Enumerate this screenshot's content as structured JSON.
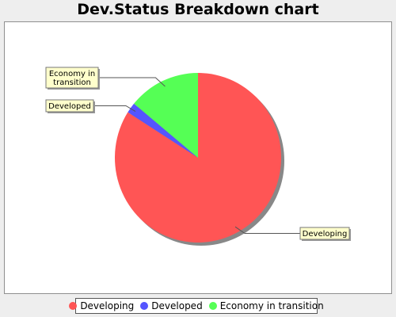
{
  "chart_data": {
    "type": "pie",
    "title": "Dev.Status Breakdown chart",
    "slices": [
      {
        "label": "Developing",
        "value": 84,
        "color": "#ff5555"
      },
      {
        "label": "Developed",
        "value": 2,
        "color": "#5555ff"
      },
      {
        "label": "Economy in transition",
        "value": 14,
        "color": "#55ff55"
      }
    ],
    "legend": {
      "placement": "bottom"
    },
    "callout_labels": [
      {
        "label": "Economy in transition",
        "lines": [
          "Economy in",
          "transition"
        ]
      },
      {
        "label": "Developed",
        "lines": [
          "Developed"
        ]
      },
      {
        "label": "Developing",
        "lines": [
          "Developing"
        ]
      }
    ]
  },
  "colors": {
    "callout_bg": "#ffffcc",
    "shadow": "#888888"
  }
}
